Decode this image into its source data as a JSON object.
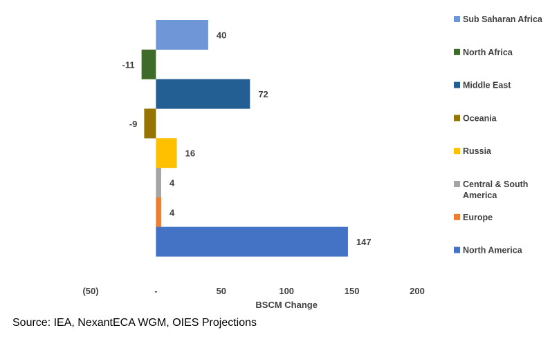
{
  "chart_data": {
    "type": "bar",
    "orientation": "horizontal",
    "categories": [
      "Sub Saharan Africa",
      "North Africa",
      "Middle East",
      "Oceania",
      "Russia",
      "Central & South America",
      "Europe",
      "North America"
    ],
    "values": [
      40,
      -11,
      72,
      -9,
      16,
      4,
      4,
      147
    ],
    "value_labels": [
      "40",
      "-11",
      "72",
      "-9",
      "16",
      "4",
      "4",
      "147"
    ],
    "colors": [
      "#6F96D6",
      "#3F6B2A",
      "#245F94",
      "#957400",
      "#FFC000",
      "#A5A5A5",
      "#ED7D31",
      "#4472C4"
    ],
    "legend": [
      {
        "lines": [
          "Sub Saharan Africa"
        ],
        "color": "#6F96D6"
      },
      {
        "lines": [
          "North Africa"
        ],
        "color": "#3F6B2A"
      },
      {
        "lines": [
          "Middle East"
        ],
        "color": "#245F94"
      },
      {
        "lines": [
          "Oceania"
        ],
        "color": "#957400"
      },
      {
        "lines": [
          "Russia"
        ],
        "color": "#FFC000"
      },
      {
        "lines": [
          "Central & South",
          "America"
        ],
        "color": "#A5A5A5"
      },
      {
        "lines": [
          "Europe"
        ],
        "color": "#ED7D31"
      },
      {
        "lines": [
          "North America"
        ],
        "color": "#4472C4"
      }
    ],
    "legend_position": "right",
    "xlabel": "BSCM Change",
    "xlim": [
      -50,
      200
    ],
    "x_ticks": [
      -50,
      0,
      50,
      100,
      150,
      200
    ],
    "x_tick_labels": [
      "(50)",
      "-",
      "50",
      "100",
      "150",
      "200"
    ],
    "grid": false
  },
  "source": "Source: IEA, NexantECA WGM, OIES Projections"
}
